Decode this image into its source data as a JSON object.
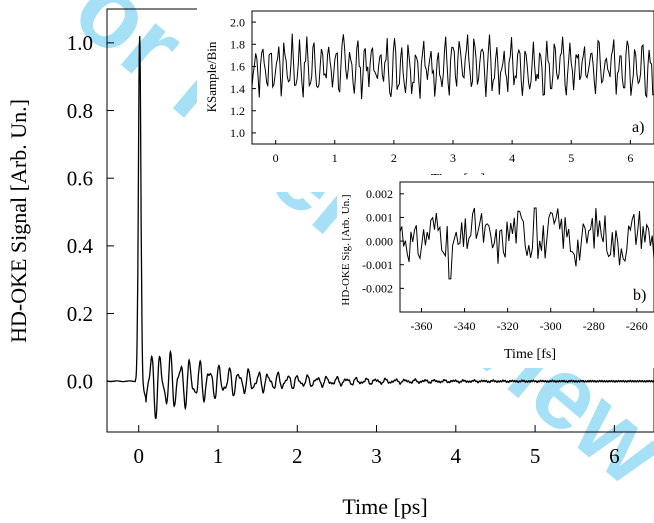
{
  "watermark": {
    "text": "For Peer Review",
    "color": "#5ec8f2"
  },
  "chart_data": [
    {
      "id": "main",
      "type": "line",
      "xlabel": "Time [ps]",
      "ylabel": "HD-OKE Signal [Arb. Un.]",
      "xlim": [
        -0.4,
        6.5
      ],
      "ylim": [
        -0.15,
        1.1
      ],
      "xticks": [
        0,
        1,
        2,
        3,
        4,
        5,
        6
      ],
      "xtick_labels": [
        "0",
        "1",
        "2",
        "3",
        "4",
        "5",
        "6"
      ],
      "yticks": [
        0.0,
        0.2,
        0.4,
        0.6,
        0.8,
        1.0
      ],
      "ytick_labels": [
        "0.0",
        "0.2",
        "0.4",
        "0.6",
        "0.8",
        "1.0"
      ],
      "grid": false,
      "series": [
        {
          "x": [
            -0.4,
            -0.2,
            -0.1,
            -0.05,
            -0.02,
            0.0,
            0.01,
            0.03,
            0.06,
            0.1,
            0.14,
            0.17,
            0.2,
            0.24,
            0.28,
            0.32,
            0.36,
            0.4,
            0.45,
            0.5,
            0.55,
            0.6,
            0.65,
            0.7,
            0.8,
            0.9,
            1.0,
            1.2,
            1.4,
            1.6,
            1.8,
            2.0,
            2.3,
            2.6,
            3.0,
            3.5,
            4.0,
            5.0,
            6.0,
            6.5
          ],
          "y": [
            0.0,
            0.0,
            0.0,
            0.01,
            0.1,
            0.7,
            1.02,
            0.8,
            0.3,
            0.0,
            -0.06,
            0.07,
            -0.04,
            0.08,
            -0.06,
            0.1,
            -0.08,
            0.12,
            -0.05,
            0.08,
            -0.06,
            0.07,
            -0.05,
            0.08,
            -0.04,
            0.06,
            -0.05,
            0.05,
            -0.04,
            0.04,
            -0.03,
            0.03,
            -0.025,
            0.02,
            -0.015,
            0.01,
            -0.008,
            0.0,
            0.0,
            0.0
          ]
        }
      ]
    },
    {
      "id": "inset-a",
      "type": "line",
      "panel_label": "a)",
      "xlabel": "Time [ps]",
      "ylabel": "KSample/Bin",
      "xlim": [
        -0.4,
        6.4
      ],
      "ylim": [
        0.9,
        2.1
      ],
      "xticks": [
        0,
        1,
        2,
        3,
        4,
        5,
        6
      ],
      "xtick_labels": [
        "0",
        "1",
        "2",
        "3",
        "4",
        "5",
        "6"
      ],
      "yticks": [
        1.0,
        1.2,
        1.4,
        1.6,
        1.8,
        2.0
      ],
      "ytick_labels": [
        "1.0",
        "1.2",
        "1.4",
        "1.6",
        "1.8",
        "2.0"
      ],
      "grid": false,
      "series": [
        {
          "mean": 1.6,
          "min": 1.25,
          "max": 1.97,
          "x_range": [
            -0.4,
            6.4
          ],
          "approx_points": 330
        }
      ]
    },
    {
      "id": "inset-b",
      "type": "line",
      "panel_label": "b)",
      "xlabel": "Time [fs]",
      "ylabel": "HD-OKE Sig. [Arb. Un.]",
      "xlim": [
        -370,
        -252
      ],
      "ylim": [
        -0.003,
        0.0025
      ],
      "xticks": [
        -360,
        -340,
        -320,
        -300,
        -280,
        -260
      ],
      "xtick_labels": [
        "-360",
        "-340",
        "-320",
        "-300",
        "-280",
        "-260"
      ],
      "yticks": [
        -0.002,
        -0.001,
        0.0,
        0.001,
        0.002
      ],
      "ytick_labels": [
        "-0.002",
        "-0.001",
        "0.000",
        "0.001",
        "0.002"
      ],
      "grid": false,
      "series": [
        {
          "mean": 0.0002,
          "min": -0.0016,
          "max": 0.0014,
          "x_range": [
            -370,
            -252
          ],
          "approx_points": 140
        }
      ]
    }
  ]
}
